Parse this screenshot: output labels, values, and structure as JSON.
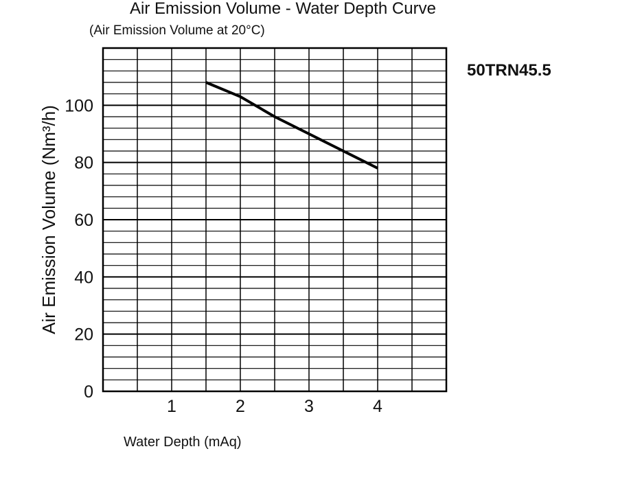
{
  "chart_data": {
    "type": "line",
    "title": "Air Emission Volume - Water Depth Curve",
    "subtitle": "(Air Emission Volume at 20°C)",
    "annotation": "50TRN45.5",
    "xlabel": "Water Depth (mAq)",
    "ylabel": "Air Emission Volume (Nm³/h)",
    "xlim": [
      0,
      5
    ],
    "ylim": [
      0,
      120
    ],
    "x_ticks": [
      1,
      2,
      3,
      4
    ],
    "x_tick_labels": [
      "1",
      "2",
      "3",
      "4"
    ],
    "y_ticks": [
      0,
      20,
      40,
      60,
      80,
      100
    ],
    "y_tick_labels": [
      "0",
      "20",
      "40",
      "60",
      "80",
      "100"
    ],
    "grid": true,
    "x_grid_step": 0.5,
    "y_grid_step": 4,
    "y_major_grid_step": 20,
    "series": [
      {
        "color": "#000000",
        "x": [
          1.5,
          2,
          2.5,
          3,
          3.5,
          4
        ],
        "y": [
          108,
          103,
          96,
          90,
          84,
          78
        ]
      }
    ]
  }
}
